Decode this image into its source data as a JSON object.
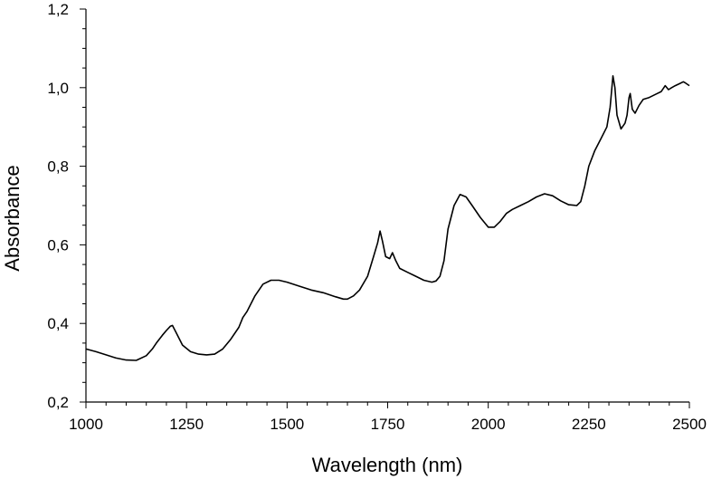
{
  "chart_data": {
    "type": "line",
    "title": "",
    "xlabel": "Wavelength (nm)",
    "ylabel": "Absorbance",
    "xlim": [
      1000,
      2500
    ],
    "ylim": [
      0.2,
      1.2
    ],
    "x_ticks": [
      1000,
      1250,
      1500,
      1750,
      2000,
      2250,
      2500
    ],
    "x_tick_labels": [
      "1000",
      "1250",
      "1500",
      "1750",
      "2000",
      "2250",
      "2500"
    ],
    "y_ticks": [
      0.2,
      0.4,
      0.6,
      0.8,
      1.0,
      1.2
    ],
    "y_tick_labels": [
      "0,2",
      "0,4",
      "0,6",
      "0,8",
      "1,0",
      "1,2"
    ],
    "grid": false,
    "legend": "none",
    "line_color": "#000000",
    "series": [
      {
        "x": [
          1000,
          1025,
          1050,
          1075,
          1100,
          1125,
          1150,
          1165,
          1175,
          1190,
          1200,
          1210,
          1215,
          1225,
          1240,
          1260,
          1280,
          1300,
          1320,
          1340,
          1360,
          1380,
          1390,
          1400,
          1420,
          1440,
          1460,
          1480,
          1500,
          1530,
          1560,
          1590,
          1620,
          1640,
          1650,
          1665,
          1680,
          1700,
          1715,
          1725,
          1731,
          1737,
          1745,
          1755,
          1762,
          1770,
          1780,
          1800,
          1820,
          1840,
          1860,
          1870,
          1880,
          1890,
          1900,
          1915,
          1930,
          1945,
          1960,
          1980,
          2000,
          2015,
          2030,
          2045,
          2060,
          2080,
          2100,
          2120,
          2140,
          2160,
          2180,
          2200,
          2220,
          2230,
          2240,
          2250,
          2265,
          2280,
          2295,
          2303,
          2310,
          2315,
          2320,
          2330,
          2340,
          2345,
          2350,
          2353,
          2358,
          2365,
          2375,
          2385,
          2400,
          2420,
          2430,
          2440,
          2448,
          2456,
          2465,
          2475,
          2485,
          2490,
          2500
        ],
        "y": [
          0.335,
          0.328,
          0.32,
          0.312,
          0.307,
          0.306,
          0.318,
          0.335,
          0.35,
          0.37,
          0.382,
          0.393,
          0.395,
          0.375,
          0.345,
          0.328,
          0.322,
          0.32,
          0.322,
          0.335,
          0.36,
          0.39,
          0.415,
          0.43,
          0.47,
          0.5,
          0.51,
          0.51,
          0.505,
          0.495,
          0.485,
          0.478,
          0.468,
          0.462,
          0.462,
          0.47,
          0.485,
          0.52,
          0.57,
          0.605,
          0.635,
          0.61,
          0.57,
          0.565,
          0.58,
          0.56,
          0.54,
          0.53,
          0.52,
          0.51,
          0.505,
          0.508,
          0.52,
          0.56,
          0.64,
          0.7,
          0.728,
          0.722,
          0.7,
          0.67,
          0.645,
          0.645,
          0.66,
          0.68,
          0.69,
          0.7,
          0.71,
          0.722,
          0.73,
          0.725,
          0.712,
          0.702,
          0.7,
          0.71,
          0.75,
          0.8,
          0.84,
          0.87,
          0.9,
          0.95,
          1.03,
          1.0,
          0.93,
          0.895,
          0.91,
          0.93,
          0.975,
          0.985,
          0.945,
          0.935,
          0.955,
          0.97,
          0.975,
          0.985,
          0.99,
          1.005,
          0.995,
          1.0,
          1.005,
          1.01,
          1.015,
          1.012,
          1.005
        ]
      }
    ]
  }
}
